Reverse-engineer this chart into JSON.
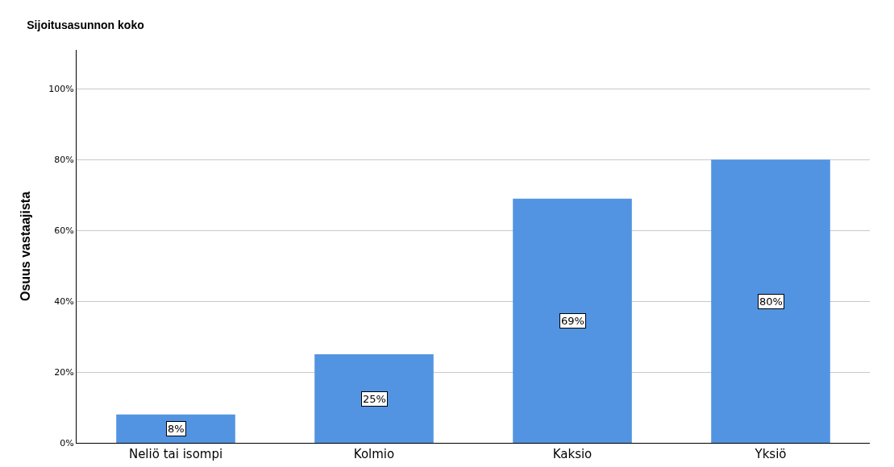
{
  "chart_data": {
    "type": "bar",
    "title": "Sijoitusasunnon koko",
    "ylabel": "Osuus vastaajista",
    "categories": [
      "Neliö tai isompi",
      "Kolmio",
      "Kaksio",
      "Yksiö"
    ],
    "values": [
      8,
      25,
      69,
      80
    ],
    "value_labels": [
      "8%",
      "25%",
      "69%",
      "80%"
    ],
    "color": "#5294e2",
    "ylim": [
      0,
      111
    ],
    "yticks": [
      {
        "value": 0,
        "label": "0%"
      },
      {
        "value": 20,
        "label": "20%"
      },
      {
        "value": 40,
        "label": "40%"
      },
      {
        "value": 60,
        "label": "60%"
      },
      {
        "value": 80,
        "label": "80%"
      },
      {
        "value": 100,
        "label": "100%"
      }
    ],
    "grid": "y",
    "legend": false
  }
}
